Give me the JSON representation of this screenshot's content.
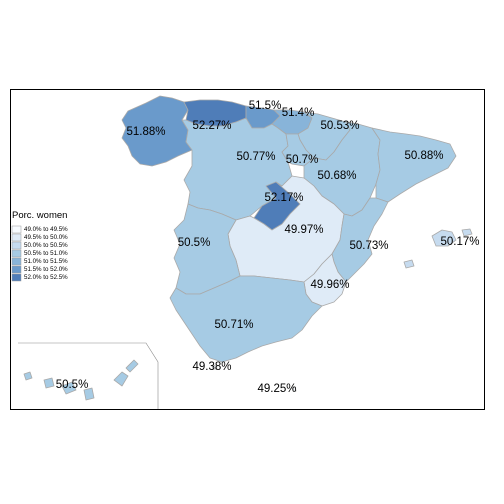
{
  "legend": {
    "title": "Porc. women",
    "items": [
      {
        "label": "49.0% to 49.5%",
        "color": "#f7fbff"
      },
      {
        "label": "49.5% to 50.0%",
        "color": "#dfebf7"
      },
      {
        "label": "50.0% to 50.5%",
        "color": "#c6dbef"
      },
      {
        "label": "50.5% to 51.0%",
        "color": "#a6cbe4"
      },
      {
        "label": "51.0% to 51.5%",
        "color": "#88b4d9"
      },
      {
        "label": "51.5% to 52.0%",
        "color": "#6a9acb"
      },
      {
        "label": "52.0% to 52.5%",
        "color": "#4f7db8"
      }
    ]
  },
  "regions": [
    {
      "name": "Galicia",
      "value": "51.88%",
      "color": "#6a9acb"
    },
    {
      "name": "Asturias",
      "value": "52.27%",
      "color": "#4f7db8"
    },
    {
      "name": "Cantabria",
      "value": "51.5%",
      "color": "#6a9acb"
    },
    {
      "name": "País Vasco",
      "value": "51.4%",
      "color": "#88b4d9"
    },
    {
      "name": "Navarra",
      "value": "50.53%",
      "color": "#a6cbe4"
    },
    {
      "name": "Castilla y León",
      "value": "50.77%",
      "color": "#a6cbe4"
    },
    {
      "name": "La Rioja",
      "value": "50.7%",
      "color": "#a6cbe4"
    },
    {
      "name": "Aragón",
      "value": "50.68%",
      "color": "#a6cbe4"
    },
    {
      "name": "Cataluña",
      "value": "50.88%",
      "color": "#a6cbe4"
    },
    {
      "name": "Madrid",
      "value": "52.17%",
      "color": "#4f7db8"
    },
    {
      "name": "Castilla-La Mancha",
      "value": "49.97%",
      "color": "#dfebf7"
    },
    {
      "name": "Extremadura",
      "value": "50.5%",
      "color": "#a6cbe4"
    },
    {
      "name": "Comunidad Valenciana",
      "value": "50.73%",
      "color": "#a6cbe4"
    },
    {
      "name": "Illes Balears",
      "value": "50.17%",
      "color": "#c6dbef"
    },
    {
      "name": "Región de Murcia",
      "value": "49.96%",
      "color": "#dfebf7"
    },
    {
      "name": "Andalucía",
      "value": "50.71%",
      "color": "#a6cbe4"
    },
    {
      "name": "Ceuta",
      "value": "49.38%",
      "color": "#f7fbff"
    },
    {
      "name": "Melilla",
      "value": "49.25%",
      "color": "#f7fbff"
    },
    {
      "name": "Canarias",
      "value": "50.5%",
      "color": "#a6cbe4"
    }
  ]
}
